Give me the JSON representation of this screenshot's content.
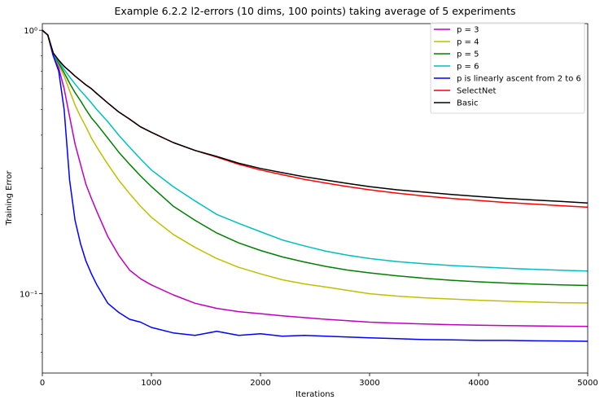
{
  "chart_data": {
    "type": "line",
    "title": "Example 6.2.2   l2-errors (10 dims, 100 points)  taking average of 5 experiments",
    "xlabel": "Iterations",
    "ylabel": "Training Error",
    "xlim": [
      0,
      5000
    ],
    "ylim": [
      0.05,
      1.06
    ],
    "yscale": "log",
    "x_ticks": [
      0,
      1000,
      2000,
      3000,
      4000,
      5000
    ],
    "y_ticks": [
      {
        "value": 1.0,
        "label": "10⁰"
      },
      {
        "value": 0.1,
        "label": "10⁻¹"
      }
    ],
    "grid": false,
    "legend_position": "top-right",
    "x": [
      0,
      50,
      100,
      150,
      200,
      250,
      300,
      350,
      400,
      450,
      500,
      600,
      700,
      800,
      900,
      1000,
      1200,
      1400,
      1600,
      1800,
      2000,
      2200,
      2400,
      2600,
      2800,
      3000,
      3250,
      3500,
      3750,
      4000,
      4250,
      4500,
      4750,
      5000
    ],
    "series": [
      {
        "name": "p = 3",
        "color": "#bf00bf",
        "values": [
          1.0,
          0.96,
          0.8,
          0.72,
          0.6,
          0.47,
          0.37,
          0.31,
          0.26,
          0.23,
          0.205,
          0.165,
          0.14,
          0.123,
          0.114,
          0.108,
          0.099,
          0.092,
          0.088,
          0.0855,
          0.084,
          0.0825,
          0.0812,
          0.08,
          0.079,
          0.078,
          0.0773,
          0.0768,
          0.0763,
          0.076,
          0.0757,
          0.0755,
          0.0753,
          0.0752
        ]
      },
      {
        "name": "p = 4",
        "color": "#bfbf00",
        "values": [
          1.0,
          0.96,
          0.81,
          0.74,
          0.67,
          0.59,
          0.52,
          0.47,
          0.43,
          0.39,
          0.36,
          0.31,
          0.27,
          0.24,
          0.215,
          0.195,
          0.168,
          0.15,
          0.136,
          0.126,
          0.119,
          0.113,
          0.109,
          0.106,
          0.103,
          0.1,
          0.098,
          0.0965,
          0.0955,
          0.0945,
          0.0937,
          0.093,
          0.0925,
          0.0922
        ]
      },
      {
        "name": "p = 5",
        "color": "#008000",
        "values": [
          1.0,
          0.96,
          0.81,
          0.75,
          0.69,
          0.63,
          0.58,
          0.54,
          0.5,
          0.465,
          0.44,
          0.39,
          0.345,
          0.31,
          0.28,
          0.255,
          0.215,
          0.19,
          0.17,
          0.156,
          0.146,
          0.138,
          0.132,
          0.127,
          0.123,
          0.12,
          0.117,
          0.1145,
          0.1125,
          0.111,
          0.1098,
          0.1088,
          0.108,
          0.1075
        ]
      },
      {
        "name": "p = 6",
        "color": "#00bfbf",
        "values": [
          1.0,
          0.96,
          0.81,
          0.76,
          0.71,
          0.665,
          0.625,
          0.59,
          0.56,
          0.53,
          0.5,
          0.45,
          0.4,
          0.36,
          0.325,
          0.295,
          0.255,
          0.225,
          0.2,
          0.185,
          0.172,
          0.16,
          0.152,
          0.145,
          0.14,
          0.136,
          0.1325,
          0.13,
          0.128,
          0.1265,
          0.125,
          0.1238,
          0.1228,
          0.122
        ]
      },
      {
        "name": "p is linearly ascent from 2 to 6",
        "color": "#0000ff",
        "values": [
          1.0,
          0.96,
          0.8,
          0.7,
          0.5,
          0.27,
          0.19,
          0.155,
          0.133,
          0.119,
          0.108,
          0.092,
          0.085,
          0.08,
          0.078,
          0.0745,
          0.071,
          0.0695,
          0.072,
          0.0695,
          0.0705,
          0.069,
          0.0695,
          0.069,
          0.0685,
          0.068,
          0.0675,
          0.067,
          0.0668,
          0.0665,
          0.0665,
          0.0663,
          0.0662,
          0.066
        ]
      },
      {
        "name": "SelectNet",
        "color": "#ff0000",
        "values": [
          1.0,
          0.96,
          0.82,
          0.77,
          0.73,
          0.7,
          0.67,
          0.645,
          0.62,
          0.6,
          0.575,
          0.53,
          0.49,
          0.46,
          0.43,
          0.41,
          0.375,
          0.35,
          0.33,
          0.31,
          0.295,
          0.283,
          0.272,
          0.263,
          0.255,
          0.248,
          0.241,
          0.235,
          0.23,
          0.226,
          0.222,
          0.219,
          0.216,
          0.213
        ]
      },
      {
        "name": "Basic",
        "color": "#000000",
        "values": [
          1.0,
          0.96,
          0.82,
          0.77,
          0.73,
          0.7,
          0.67,
          0.645,
          0.62,
          0.6,
          0.575,
          0.53,
          0.49,
          0.46,
          0.43,
          0.41,
          0.375,
          0.35,
          0.332,
          0.313,
          0.299,
          0.288,
          0.278,
          0.27,
          0.262,
          0.255,
          0.248,
          0.243,
          0.238,
          0.234,
          0.23,
          0.227,
          0.224,
          0.221
        ]
      }
    ]
  }
}
